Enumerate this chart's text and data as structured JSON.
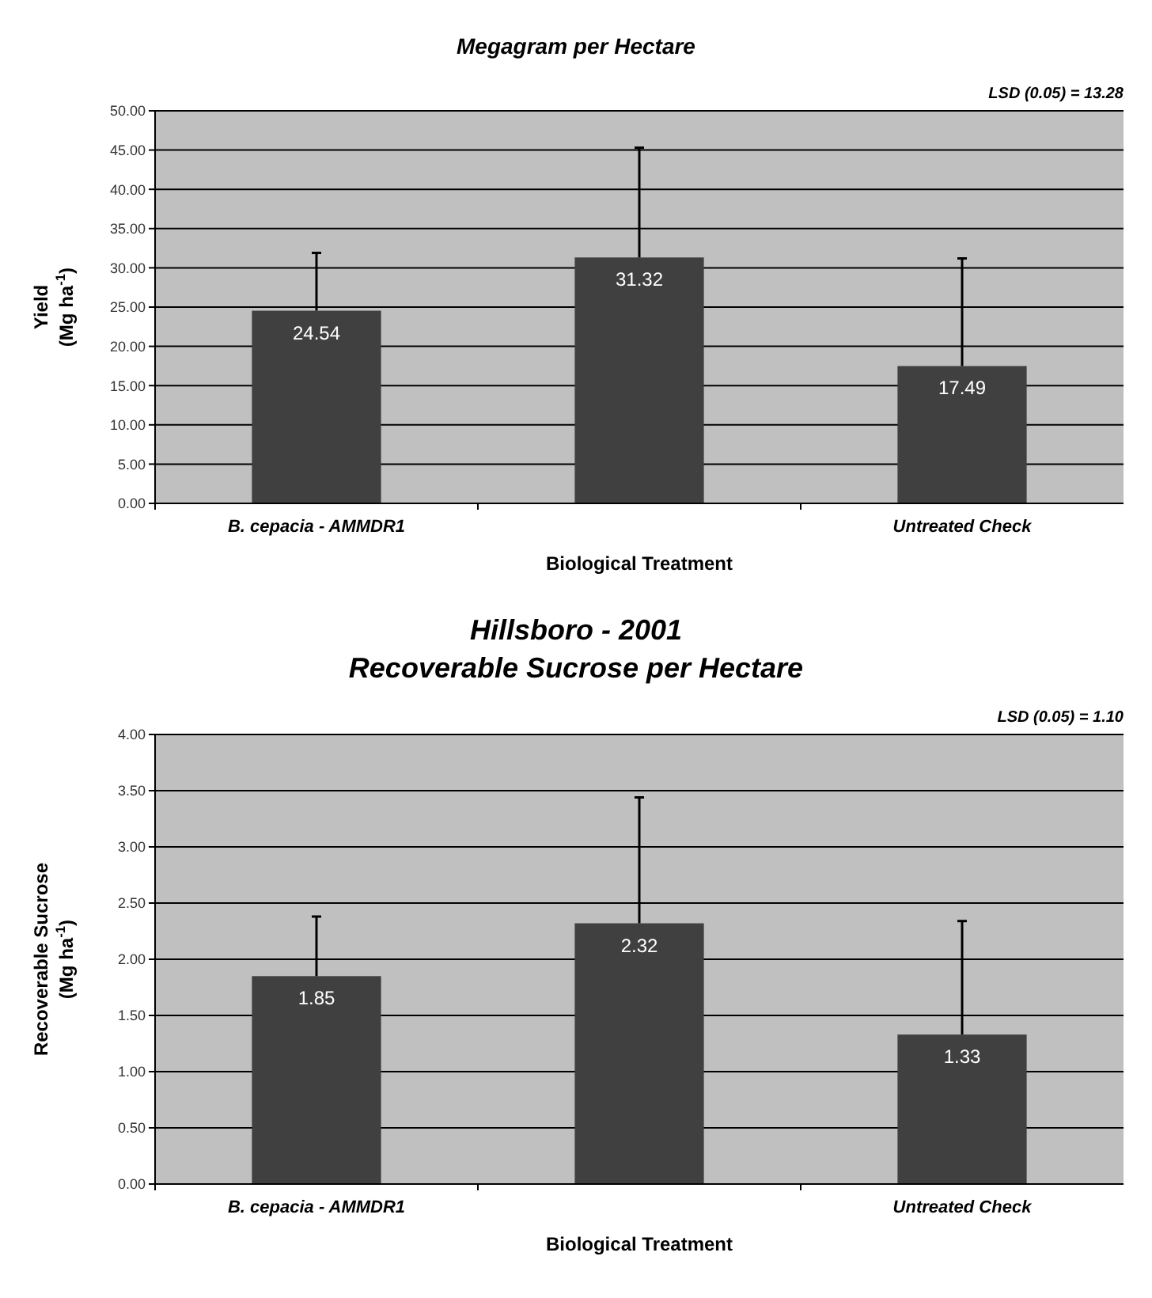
{
  "chart_data": [
    {
      "type": "bar",
      "title": "Megagram per Hectare",
      "xlabel": "Biological Treatment",
      "ylabel": "Yield\n(Mg ha$^{-1}$)",
      "annotations": [
        "LSD (0.05) = 13.28"
      ],
      "categories": [
        "B. cepacia - AMMDR1",
        null,
        "Untreated Check"
      ],
      "values": [
        24.54,
        31.32,
        17.49
      ],
      "errors": [
        [
          24.54,
          31.9
        ],
        [
          31.32,
          45.3
        ],
        [
          17.49,
          31.2
        ]
      ],
      "color": "#404040",
      "data_labels": true,
      "grid": "y",
      "ylim": [
        0,
        50
      ],
      "yticks": [
        {
          "value": 0,
          "label": "0.00"
        },
        {
          "value": 5,
          "label": "5.00"
        },
        {
          "value": 10,
          "label": "10.00"
        },
        {
          "value": 15,
          "label": "15.00"
        },
        {
          "value": 20,
          "label": "20.00"
        },
        {
          "value": 25,
          "label": "25.00"
        },
        {
          "value": 30,
          "label": "30.00"
        },
        {
          "value": 35,
          "label": "35.00"
        },
        {
          "value": 40,
          "label": "40.00"
        },
        {
          "value": 45,
          "label": "45.00"
        },
        {
          "value": 50,
          "label": "50.00"
        }
      ]
    },
    {
      "type": "bar",
      "title": "Hillsboro - 2001\nRecoverable Sucrose per Hectare",
      "xlabel": "Biological Treatment",
      "ylabel": "Recoverable Sucrose\n(Mg ha$^{-1}$)",
      "annotations": [
        "LSD (0.05) = 1.10"
      ],
      "categories": [
        "B. cepacia - AMMDR1",
        null,
        "Untreated Check"
      ],
      "values": [
        1.85,
        2.32,
        1.33
      ],
      "errors": [
        [
          1.85,
          2.38
        ],
        [
          2.32,
          3.44
        ],
        [
          1.33,
          2.34
        ]
      ],
      "color": "#404040",
      "data_labels": true,
      "grid": "y",
      "ylim": [
        0,
        4
      ],
      "yticks": [
        {
          "value": 0,
          "label": "0.00"
        },
        {
          "value": 0.5,
          "label": "0.50"
        },
        {
          "value": 1,
          "label": "1.00"
        },
        {
          "value": 1.5,
          "label": "1.50"
        },
        {
          "value": 2,
          "label": "2.00"
        },
        {
          "value": 2.5,
          "label": "2.50"
        },
        {
          "value": 3,
          "label": "3.00"
        },
        {
          "value": 3.5,
          "label": "3.50"
        },
        {
          "value": 4,
          "label": "4.00"
        }
      ]
    }
  ]
}
